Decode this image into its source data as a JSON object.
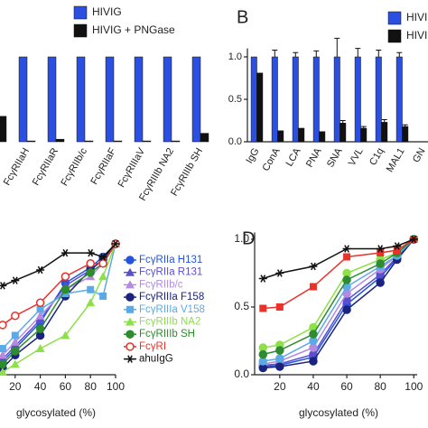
{
  "chart_data": [
    {
      "type": "bar",
      "categories": [
        null,
        "FcγRIIaH",
        "FcγRIIaR",
        "FcγRIIb/c",
        "FcγRIIaF",
        "FcγRIIIaV",
        "FcγRIIIb NA2",
        "FcγRIIIb SH"
      ],
      "series": [
        {
          "name": "HIVIG",
          "color": "#2b4fe0",
          "values": [
            null,
            1,
            1,
            1,
            1,
            1,
            1,
            1
          ]
        },
        {
          "name": "HIVIG + PNGase",
          "color": "#111111",
          "values": [
            0.3,
            0.01,
            0.03,
            0.01,
            0.01,
            0.01,
            0.01,
            0.1
          ]
        }
      ],
      "ylim": [
        0,
        1.1
      ]
    },
    {
      "type": "bar",
      "label": "B",
      "categories": [
        "IgG",
        "ConA",
        "LCA",
        "PNA",
        "SNA",
        "VVL",
        "C1q",
        "MAL1",
        "GN"
      ],
      "series": [
        {
          "name": "HIVIG",
          "color": "#2b4fe0",
          "values": [
            1,
            1,
            1,
            1,
            1,
            1,
            1,
            1,
            null
          ],
          "errors": [
            0,
            0.08,
            0.05,
            0.07,
            0.22,
            0.1,
            0.08,
            0.05,
            null
          ]
        },
        {
          "name": "HIVIG + PNGase",
          "color": "#111111",
          "values": [
            0.81,
            0.13,
            0.16,
            0.12,
            0.22,
            0.16,
            0.23,
            0.18,
            null
          ],
          "errors": [
            0,
            0,
            0,
            0,
            0.03,
            0.02,
            0.03,
            0.02,
            null
          ]
        }
      ],
      "ylim": [
        0,
        1.1
      ],
      "yticks": [
        {
          "value": 0,
          "label": "0.0"
        },
        {
          "value": 0.5,
          "label": "0.5"
        },
        {
          "value": 1,
          "label": "1.0"
        }
      ]
    },
    {
      "type": "line",
      "xlabel": "glycosylated (%)",
      "x": [
        10,
        20,
        40,
        60,
        80,
        90,
        100
      ],
      "xlim": [
        0,
        100
      ],
      "ylim": [
        0,
        1
      ],
      "xticks": [
        20,
        40,
        60,
        80,
        100
      ],
      "series": [
        {
          "name": "FcγRIIa H131",
          "color": "#2255dd",
          "marker": "circle",
          "values": [
            0.1,
            0.2,
            0.4,
            0.7,
            0.82,
            0.9,
            1.0
          ]
        },
        {
          "name": "FcγRIIa R131",
          "color": "#5a4fcf",
          "marker": "triangle",
          "values": [
            0.12,
            0.22,
            0.42,
            0.68,
            0.8,
            0.88,
            1.0
          ]
        },
        {
          "name": "FcγRIIb/c",
          "color": "#b48be0",
          "marker": "triangle",
          "values": [
            0.15,
            0.25,
            0.45,
            0.65,
            0.75,
            0.85,
            1.0
          ]
        },
        {
          "name": "FcγRIIIa F158",
          "color": "#1a237e",
          "marker": "circle",
          "values": [
            0.05,
            0.15,
            0.3,
            0.6,
            0.8,
            0.88,
            1.0
          ]
        },
        {
          "name": "FcγRIIIa V158",
          "color": "#5aaae8",
          "marker": "square",
          "values": [
            0.2,
            0.3,
            0.5,
            0.62,
            0.65,
            0.6,
            1.0
          ]
        },
        {
          "name": "FcγRIIIb NA2",
          "color": "#8ee04a",
          "marker": "triangle",
          "values": [
            0.02,
            0.08,
            0.2,
            0.3,
            0.55,
            0.75,
            1.0
          ]
        },
        {
          "name": "FcγRIIIb SH",
          "color": "#2e8b2e",
          "marker": "circle",
          "values": [
            0.08,
            0.18,
            0.35,
            0.65,
            0.78,
            0.85,
            1.0
          ]
        },
        {
          "name": "FcγRI",
          "color": "#e8322a",
          "marker": "open-circle",
          "values": [
            0.38,
            0.45,
            0.55,
            0.75,
            0.85,
            0.85,
            1.0
          ]
        },
        {
          "name": "ahuIgG",
          "color": "#111111",
          "marker": "star",
          "values": [
            0.68,
            0.72,
            0.8,
            0.93,
            0.93,
            0.9,
            1.0
          ]
        }
      ],
      "legend": "right"
    },
    {
      "type": "line",
      "label": "D",
      "xlabel": "glycosylated (%)",
      "x": [
        10,
        20,
        40,
        60,
        80,
        90,
        100
      ],
      "xlim": [
        5,
        102
      ],
      "ylim": [
        0,
        1.05
      ],
      "xticks": [
        20,
        40,
        60,
        80,
        100
      ],
      "yticks": [
        {
          "value": 0,
          "label": "0.0"
        },
        {
          "value": 0.5,
          "label": "0.5"
        },
        {
          "value": 1,
          "label": "1.0"
        }
      ],
      "series": [
        {
          "color": "#2255dd",
          "marker": "circle",
          "values": [
            0.06,
            0.07,
            0.13,
            0.52,
            0.72,
            0.86,
            1.0
          ]
        },
        {
          "color": "#5a4fcf",
          "marker": "circle",
          "values": [
            0.07,
            0.08,
            0.15,
            0.55,
            0.74,
            0.87,
            1.0
          ]
        },
        {
          "color": "#b48be0",
          "marker": "circle",
          "values": [
            0.08,
            0.1,
            0.2,
            0.6,
            0.78,
            0.88,
            1.0
          ]
        },
        {
          "color": "#1a237e",
          "marker": "circle",
          "values": [
            0.05,
            0.06,
            0.1,
            0.48,
            0.68,
            0.85,
            1.0
          ]
        },
        {
          "color": "#5aaae8",
          "marker": "circle",
          "values": [
            0.1,
            0.12,
            0.25,
            0.65,
            0.8,
            0.88,
            1.0
          ]
        },
        {
          "color": "#8ee04a",
          "marker": "circle",
          "values": [
            0.2,
            0.22,
            0.35,
            0.75,
            0.85,
            0.9,
            1.0
          ]
        },
        {
          "color": "#2e8b2e",
          "marker": "circle",
          "values": [
            0.15,
            0.18,
            0.3,
            0.7,
            0.82,
            0.9,
            1.0
          ]
        },
        {
          "color": "#e8322a",
          "marker": "square",
          "values": [
            0.49,
            0.5,
            0.65,
            0.87,
            0.9,
            0.92,
            1.0
          ]
        },
        {
          "color": "#111111",
          "marker": "star",
          "values": [
            0.71,
            0.75,
            0.8,
            0.93,
            0.93,
            0.95,
            1.0
          ]
        }
      ]
    }
  ]
}
